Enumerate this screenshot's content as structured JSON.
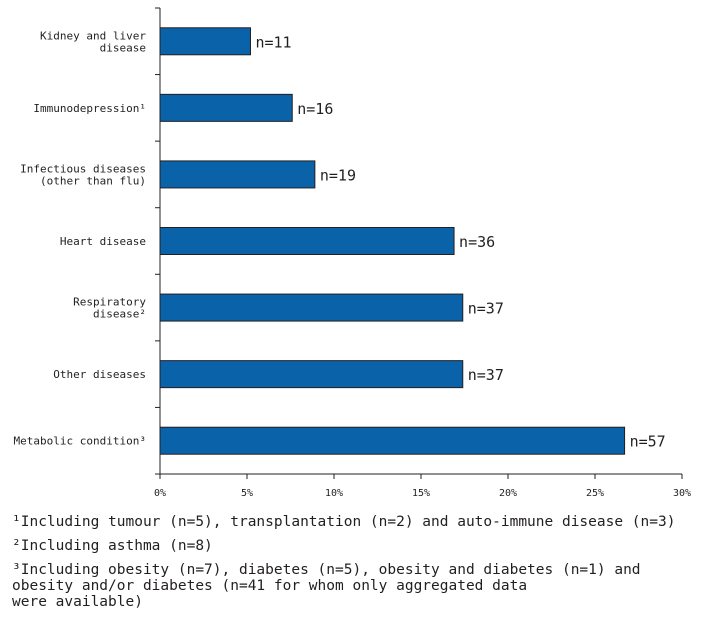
{
  "chart_data": {
    "type": "bar",
    "orientation": "horizontal",
    "categories": [
      "Kidney and liver\ndisease",
      "Immunodepression¹",
      "Infectious diseases\n(other than flu)",
      "Heart disease",
      "Respiratory\ndisease²",
      "Other diseases",
      "Metabolic condition³"
    ],
    "values": [
      5.2,
      7.6,
      8.9,
      16.9,
      17.4,
      17.4,
      26.7
    ],
    "data_labels": [
      "n=11",
      "n=16",
      "n=19",
      "n=36",
      "n=37",
      "n=37",
      "n=57"
    ],
    "xlim": [
      0,
      30
    ],
    "x_ticks": [
      "0%",
      "5%",
      "10%",
      "15%",
      "20%",
      "25%",
      "30%"
    ],
    "title": "",
    "xlabel": "",
    "ylabel": "",
    "grid": false,
    "bar_color": "#0a62a9"
  },
  "footnotes": [
    "¹Including tumour (n=5), transplantation (n=2) and auto-immune disease (n=3)",
    "²Including asthma (n=8)",
    "³Including obesity (n=7), diabetes (n=5), obesity and diabetes (n=1) and\n obesity and/or diabetes (n=41 for whom only aggregated data\n were available)"
  ]
}
